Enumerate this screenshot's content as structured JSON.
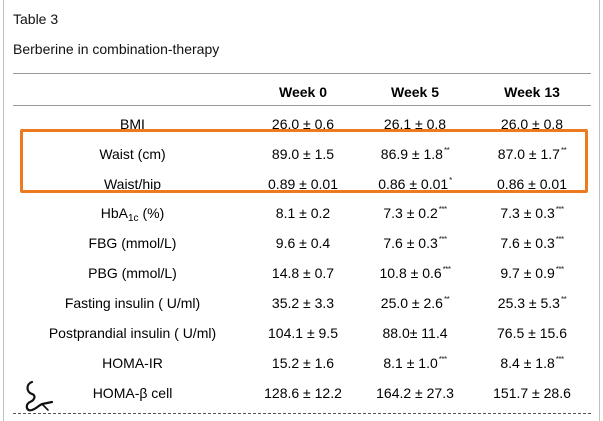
{
  "table": {
    "caption": "Table 3",
    "title": "Berberine in combination-therapy",
    "columns": [
      "Week 0",
      "Week 5",
      "Week 13"
    ],
    "rows": [
      {
        "label": "BMI",
        "values": [
          "26.0 ± 0.6",
          "26.1 ± 0.8",
          "26.0 ± 0.8"
        ],
        "sig": [
          "",
          "",
          ""
        ]
      },
      {
        "label": "Waist (cm)",
        "values": [
          "89.0 ± 1.5",
          "86.9 ± 1.8",
          "87.0 ± 1.7"
        ],
        "sig": [
          "",
          "**",
          "**"
        ]
      },
      {
        "label": "Waist/hip",
        "values": [
          "0.89 ± 0.01",
          "0.86 ± 0.01",
          "0.86 ± 0.01"
        ],
        "sig": [
          "",
          "*",
          ""
        ]
      },
      {
        "label_pre": "HbA",
        "label_sub": "1c",
        "label_post": " (%)",
        "values": [
          "8.1 ± 0.2",
          "7.3 ± 0.2",
          "7.3 ± 0.3"
        ],
        "sig": [
          "",
          "***",
          "***"
        ]
      },
      {
        "label": "FBG (mmol/L)",
        "values": [
          "9.6 ± 0.4",
          "7.6 ± 0.3",
          "7.6 ± 0.3"
        ],
        "sig": [
          "",
          "***",
          "***"
        ]
      },
      {
        "label": "PBG (mmol/L)",
        "values": [
          "14.8 ± 0.7",
          "10.8 ± 0.6",
          "9.7 ± 0.9"
        ],
        "sig": [
          "",
          "***",
          "***"
        ]
      },
      {
        "label": "Fasting insulin (    U/ml)",
        "values": [
          "35.2 ± 3.3",
          "25.0 ± 2.6",
          "25.3 ± 5.3"
        ],
        "sig": [
          "",
          "**",
          "**"
        ]
      },
      {
        "label": "Postprandial insulin (    U/ml)",
        "values": [
          "104.1 ± 9.5",
          "88.0± 11.4",
          "76.5 ± 15.6"
        ],
        "sig": [
          "",
          "",
          ""
        ]
      },
      {
        "label": "HOMA-IR",
        "values": [
          "15.2 ± 1.6",
          "8.1 ± 1.0",
          "8.4 ± 1.8"
        ],
        "sig": [
          "",
          "***",
          "***"
        ]
      },
      {
        "label": "HOMA-β cell",
        "values": [
          "128.6 ± 12.2",
          "164.2 ± 27.3",
          "151.7 ± 28.6"
        ],
        "sig": [
          "",
          "",
          ""
        ]
      }
    ]
  },
  "colors": {
    "highlight": "#ee7a1f",
    "rule": "#9a9a9a"
  }
}
